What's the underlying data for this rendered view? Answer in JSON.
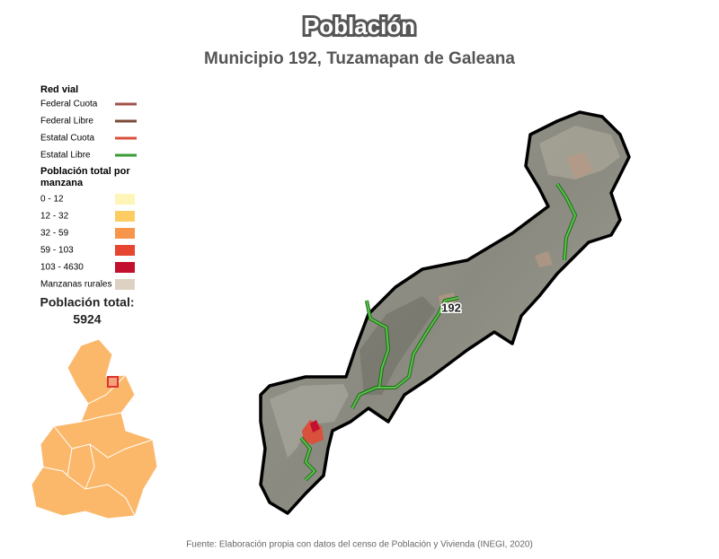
{
  "header": {
    "title": "Población",
    "subtitle": "Municipio 192, Tuzamapan de Galeana"
  },
  "legend": {
    "roads": {
      "title": "Red vial",
      "items": [
        {
          "label": "Federal Cuota",
          "color": "#a0524a"
        },
        {
          "label": "Federal Libre",
          "color": "#7a4a35"
        },
        {
          "label": "Estatal Cuota",
          "color": "#d9503c"
        },
        {
          "label": "Estatal Libre",
          "color": "#3a9a35"
        }
      ]
    },
    "population": {
      "title": "Población total por manzana",
      "items": [
        {
          "label": "0 - 12",
          "color": "#fff5b8"
        },
        {
          "label": "12 - 32",
          "color": "#fdcc62"
        },
        {
          "label": "32 - 59",
          "color": "#f7954a"
        },
        {
          "label": "59 - 103",
          "color": "#e64530"
        },
        {
          "label": "103 - 4630",
          "color": "#c2102e"
        },
        {
          "label": "Manzanas rurales",
          "color": "#ddd2c2"
        }
      ]
    }
  },
  "total": {
    "label": "Población total:",
    "value": "5924"
  },
  "map": {
    "municipality_label": "192"
  },
  "footer": {
    "source": "Fuente: Elaboración propia con datos del censo de Población y Vivienda (INEGI, 2020)"
  }
}
